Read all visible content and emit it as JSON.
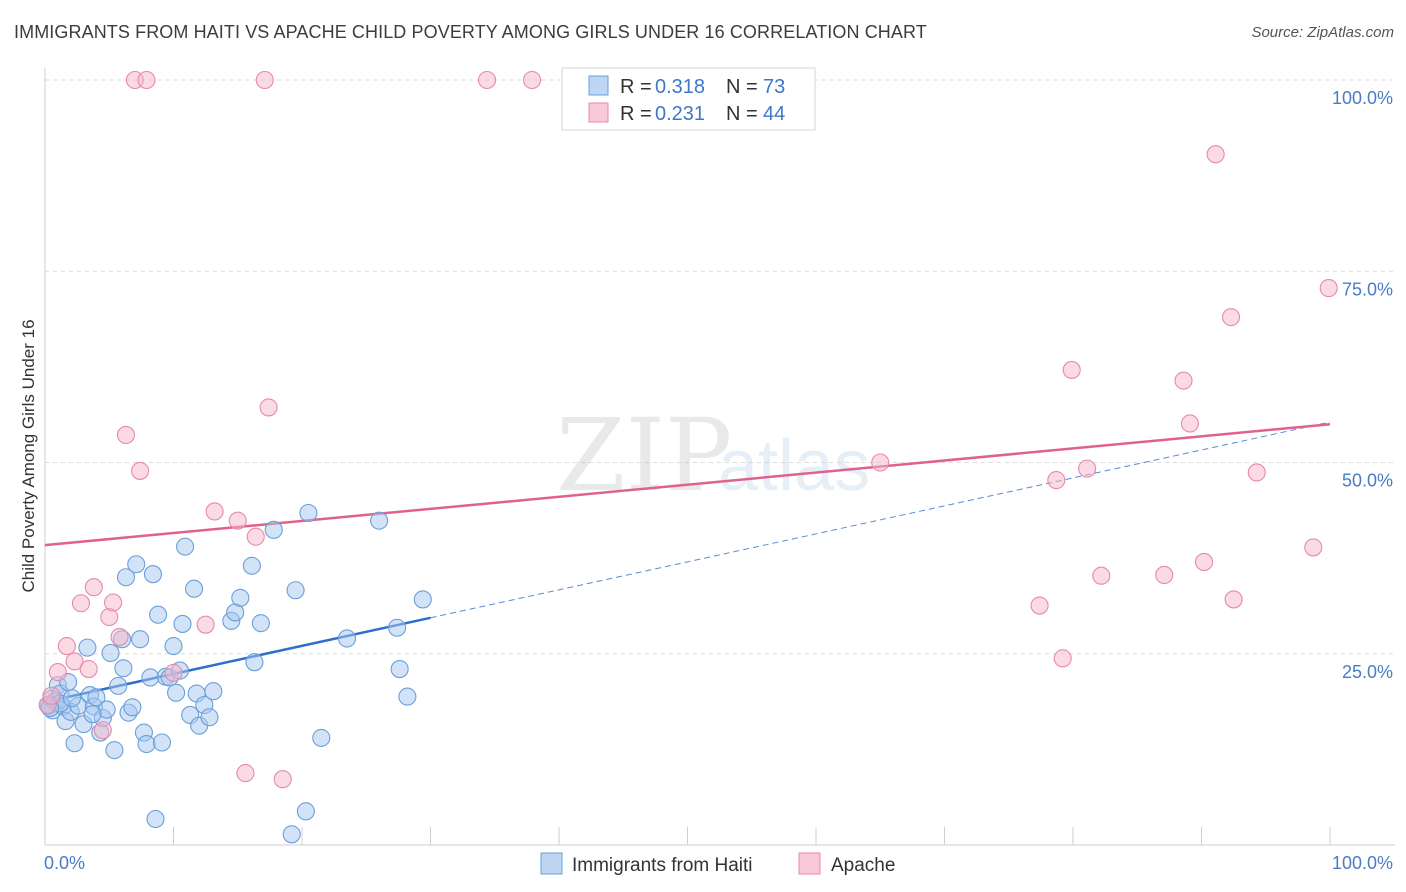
{
  "header": {
    "title": "IMMIGRANTS FROM HAITI VS APACHE CHILD POVERTY AMONG GIRLS UNDER 16 CORRELATION CHART",
    "source": "Source: ZipAtlas.com"
  },
  "watermark": {
    "zip": "ZIP",
    "atlas": "atlas"
  },
  "legend_top": [
    {
      "r_label": "R = ",
      "r_value": "0.318",
      "n_label": "N = ",
      "n_value": "73",
      "color": "#a8c8f0"
    },
    {
      "r_label": "R = ",
      "r_value": "0.231",
      "n_label": "N = ",
      "n_value": "44",
      "color": "#f5b8cb"
    }
  ],
  "chart_data": {
    "type": "scatter",
    "title": "IMMIGRANTS FROM HAITI VS APACHE CHILD POVERTY AMONG GIRLS UNDER 16 CORRELATION CHART",
    "xlabel": "",
    "ylabel": "Child Poverty Among Girls Under 16",
    "xlim": [
      0,
      100
    ],
    "ylim": [
      0,
      100
    ],
    "x_tick_labels": [
      "0.0%",
      "100.0%"
    ],
    "y_ticks": [
      {
        "value": 25,
        "label": "25.0%"
      },
      {
        "value": 50,
        "label": "50.0%"
      },
      {
        "value": 75,
        "label": "75.0%"
      },
      {
        "value": 100,
        "label": "100.0%"
      }
    ],
    "grid": true,
    "legend_position": "bottom",
    "series": [
      {
        "name": "Immigrants from Haiti",
        "color": "#a8c8f0",
        "stroke": "#6a9fd8",
        "line_color": "#2e6fcc",
        "trend": {
          "x0": 0,
          "y0": 18.7,
          "x1": 30,
          "y1": 29.7,
          "extend_to": 100,
          "extend_y": 55.3
        },
        "points": [
          [
            0.3,
            18.2
          ],
          [
            0.5,
            19.1
          ],
          [
            0.6,
            17.6
          ],
          [
            0.8,
            18.8
          ],
          [
            1.0,
            20.9
          ],
          [
            1.2,
            19.8
          ],
          [
            1.4,
            18.1
          ],
          [
            1.6,
            16.2
          ],
          [
            1.8,
            21.3
          ],
          [
            2.0,
            17.4
          ],
          [
            2.3,
            13.3
          ],
          [
            2.6,
            18.2
          ],
          [
            3.0,
            15.8
          ],
          [
            3.3,
            25.8
          ],
          [
            3.5,
            19.6
          ],
          [
            3.8,
            18.1
          ],
          [
            4.0,
            19.3
          ],
          [
            4.3,
            14.7
          ],
          [
            4.5,
            16.6
          ],
          [
            4.8,
            17.7
          ],
          [
            5.1,
            25.1
          ],
          [
            5.4,
            12.4
          ],
          [
            5.7,
            20.8
          ],
          [
            6.0,
            26.9
          ],
          [
            6.1,
            23.1
          ],
          [
            6.3,
            35.0
          ],
          [
            6.5,
            17.3
          ],
          [
            6.8,
            18.0
          ],
          [
            7.1,
            36.7
          ],
          [
            7.4,
            26.9
          ],
          [
            7.7,
            14.7
          ],
          [
            7.9,
            13.2
          ],
          [
            8.2,
            21.9
          ],
          [
            8.4,
            35.4
          ],
          [
            8.6,
            3.4
          ],
          [
            8.8,
            30.1
          ],
          [
            9.1,
            13.4
          ],
          [
            9.4,
            22.0
          ],
          [
            9.7,
            21.9
          ],
          [
            10.0,
            26.0
          ],
          [
            10.2,
            19.9
          ],
          [
            10.5,
            22.8
          ],
          [
            10.7,
            28.9
          ],
          [
            10.9,
            39.0
          ],
          [
            11.3,
            17.0
          ],
          [
            11.6,
            33.5
          ],
          [
            11.8,
            19.8
          ],
          [
            12.0,
            15.6
          ],
          [
            12.4,
            18.3
          ],
          [
            12.8,
            16.7
          ],
          [
            13.1,
            20.1
          ],
          [
            14.5,
            29.3
          ],
          [
            14.8,
            30.4
          ],
          [
            15.2,
            32.3
          ],
          [
            16.1,
            36.5
          ],
          [
            16.3,
            23.9
          ],
          [
            16.8,
            29.0
          ],
          [
            17.8,
            41.2
          ],
          [
            19.2,
            1.4
          ],
          [
            19.5,
            33.3
          ],
          [
            20.5,
            43.4
          ],
          [
            20.3,
            4.4
          ],
          [
            21.5,
            14.0
          ],
          [
            23.5,
            27.0
          ],
          [
            26.0,
            42.4
          ],
          [
            27.4,
            28.4
          ],
          [
            27.6,
            23.0
          ],
          [
            28.2,
            19.4
          ],
          [
            29.4,
            32.1
          ],
          [
            1.2,
            18.5
          ],
          [
            2.1,
            19.2
          ],
          [
            0.4,
            17.9
          ],
          [
            3.7,
            17.1
          ]
        ]
      },
      {
        "name": "Apache",
        "color": "#f5b8cb",
        "stroke": "#e889a8",
        "line_color": "#e0628c",
        "trend": {
          "x0": 0,
          "y0": 39.2,
          "x1": 100,
          "y1": 55.0
        },
        "points": [
          [
            0.2,
            18.3
          ],
          [
            0.5,
            19.5
          ],
          [
            1.0,
            22.6
          ],
          [
            1.7,
            26.0
          ],
          [
            2.3,
            24.0
          ],
          [
            2.8,
            31.6
          ],
          [
            3.4,
            23.0
          ],
          [
            3.8,
            33.7
          ],
          [
            4.5,
            15.0
          ],
          [
            5.0,
            29.8
          ],
          [
            5.3,
            31.7
          ],
          [
            5.8,
            27.2
          ],
          [
            6.3,
            53.6
          ],
          [
            7.0,
            100.0
          ],
          [
            7.4,
            48.9
          ],
          [
            7.9,
            100.0
          ],
          [
            10.0,
            22.5
          ],
          [
            12.5,
            28.8
          ],
          [
            13.2,
            43.6
          ],
          [
            15.0,
            42.4
          ],
          [
            15.6,
            9.4
          ],
          [
            16.4,
            40.3
          ],
          [
            17.1,
            100.0
          ],
          [
            17.4,
            57.2
          ],
          [
            18.5,
            8.6
          ],
          [
            34.4,
            100.0
          ],
          [
            37.9,
            100.0
          ],
          [
            65.0,
            50.0
          ],
          [
            77.4,
            31.3
          ],
          [
            78.7,
            47.7
          ],
          [
            79.2,
            24.4
          ],
          [
            79.9,
            62.1
          ],
          [
            81.1,
            49.2
          ],
          [
            82.2,
            35.2
          ],
          [
            87.1,
            35.3
          ],
          [
            88.6,
            60.7
          ],
          [
            89.1,
            55.1
          ],
          [
            90.2,
            37.0
          ],
          [
            91.1,
            90.3
          ],
          [
            92.3,
            69.0
          ],
          [
            92.5,
            32.1
          ],
          [
            94.3,
            48.7
          ],
          [
            98.7,
            38.9
          ],
          [
            99.9,
            72.8
          ]
        ]
      }
    ]
  }
}
